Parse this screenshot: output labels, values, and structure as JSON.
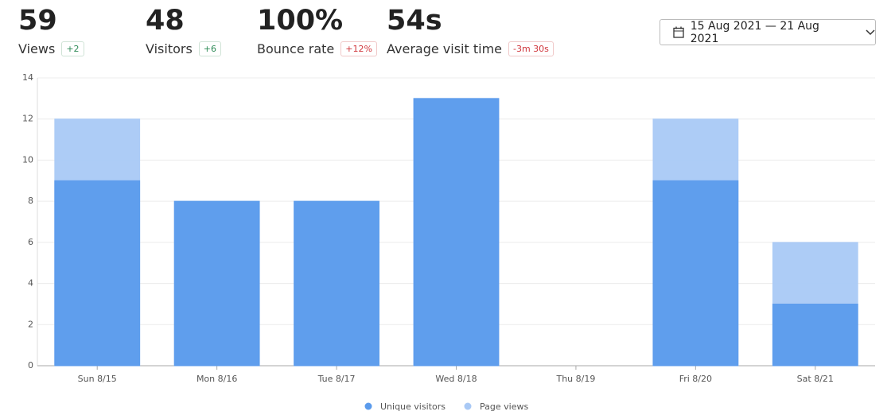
{
  "stats": [
    {
      "value": "59",
      "label": "Views",
      "change": "+2"
    },
    {
      "value": "48",
      "label": "Visitors",
      "change": "+6"
    },
    {
      "value": "100%",
      "label": "Bounce rate",
      "change": "+12%"
    },
    {
      "value": "54s",
      "label": "Average visit time",
      "change": "-3m 30s"
    }
  ],
  "date_range": "15 Aug 2021 — 21 Aug 2021",
  "chart_data": {
    "type": "bar",
    "overlap": true,
    "categories": [
      "Sun 8/15",
      "Mon 8/16",
      "Tue 8/17",
      "Wed 8/18",
      "Thu 8/19",
      "Fri 8/20",
      "Sat 8/21"
    ],
    "series": [
      {
        "name": "Unique visitors",
        "color": "#5b9bec",
        "values": [
          9,
          8,
          8,
          13,
          0,
          9,
          3
        ]
      },
      {
        "name": "Page views",
        "color": "#a9c9f5",
        "values": [
          12,
          8,
          8,
          13,
          0,
          12,
          6
        ]
      }
    ],
    "ylim": [
      0,
      14
    ],
    "yticks": [
      0,
      2,
      4,
      6,
      8,
      10,
      12,
      14
    ],
    "grid": true
  }
}
